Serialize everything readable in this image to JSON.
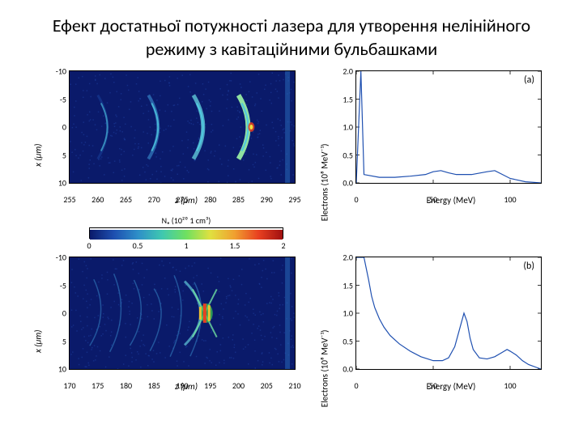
{
  "title": "Ефект достатньої потужності лазера для утворення нелінійного режиму з кавітаційними бульбашками",
  "heatmap_top": {
    "ylabel": "x (μm)",
    "xlabel": "z (μm)",
    "yticks": [
      -10,
      -5,
      0,
      5,
      10
    ],
    "xticks": [
      255,
      260,
      265,
      270,
      275,
      280,
      285,
      290,
      295
    ],
    "xlim": [
      255,
      295
    ],
    "ylim": [
      -10,
      10
    ],
    "background_color": "#0a1a6a",
    "bubble_colors": [
      "#1e4fb0",
      "#3a8fd0",
      "#5fc8d8",
      "#8fe0a0"
    ],
    "hotspot_color": "#e84020",
    "bubble_positions_z": [
      262,
      271,
      279,
      287
    ],
    "bubble_width": 7
  },
  "heatmap_bottom": {
    "ylabel": "x (μm)",
    "xlabel": "z (μm)",
    "yticks": [
      -10,
      -5,
      0,
      5,
      10
    ],
    "xticks": [
      170,
      175,
      180,
      185,
      190,
      195,
      200,
      205,
      210
    ],
    "xlim": [
      170,
      210
    ],
    "ylim": [
      -10,
      10
    ],
    "background_color": "#0a1a6a",
    "hotspot_colors": [
      "#e84020",
      "#f0c030",
      "#40d050"
    ],
    "hotspot_z": 194
  },
  "colorbar": {
    "title": "Nₑ (10²⁰ 1 cm³)",
    "ticks": [
      0,
      0.5,
      1,
      1.5,
      2
    ],
    "min": 0,
    "max": 2,
    "gradient_stops": [
      "#0a1a6a",
      "#1e4fb0",
      "#2e8fc8",
      "#3fc8b0",
      "#6fe060",
      "#e0e040",
      "#f0a030",
      "#e84020",
      "#a01010"
    ]
  },
  "spectrum_a": {
    "panel_label": "(a)",
    "ylabel": "Electrons (10⁸ MeV⁻¹)",
    "xlabel": "Energy (MeV)",
    "yticks": [
      0,
      0.5,
      1.0,
      1.5,
      2.0
    ],
    "xticks": [
      0,
      50,
      100
    ],
    "xlim": [
      0,
      120
    ],
    "ylim": [
      0,
      2.0
    ],
    "line_color": "#1e4fb0",
    "line_width": 1.2,
    "data": [
      [
        0,
        0
      ],
      [
        3,
        2.0
      ],
      [
        5,
        0.15
      ],
      [
        15,
        0.1
      ],
      [
        25,
        0.1
      ],
      [
        35,
        0.12
      ],
      [
        45,
        0.15
      ],
      [
        50,
        0.2
      ],
      [
        55,
        0.22
      ],
      [
        60,
        0.18
      ],
      [
        65,
        0.15
      ],
      [
        75,
        0.15
      ],
      [
        85,
        0.2
      ],
      [
        90,
        0.22
      ],
      [
        95,
        0.15
      ],
      [
        100,
        0.08
      ],
      [
        110,
        0.02
      ],
      [
        120,
        0
      ]
    ]
  },
  "spectrum_b": {
    "panel_label": "(b)",
    "ylabel": "Electrons (10⁸ MeV⁻¹)",
    "xlabel": "Energy (MeV)",
    "yticks": [
      0,
      0.5,
      1.0,
      1.5,
      2.0
    ],
    "xticks": [
      0,
      50,
      100
    ],
    "xlim": [
      0,
      120
    ],
    "ylim": [
      0,
      2.0
    ],
    "line_color": "#1e4fb0",
    "line_width": 1.2,
    "data": [
      [
        0,
        2.0
      ],
      [
        5,
        2.0
      ],
      [
        8,
        1.6
      ],
      [
        10,
        1.3
      ],
      [
        12,
        1.1
      ],
      [
        15,
        0.9
      ],
      [
        18,
        0.75
      ],
      [
        22,
        0.6
      ],
      [
        28,
        0.45
      ],
      [
        35,
        0.32
      ],
      [
        42,
        0.22
      ],
      [
        50,
        0.15
      ],
      [
        56,
        0.15
      ],
      [
        60,
        0.2
      ],
      [
        64,
        0.4
      ],
      [
        67,
        0.7
      ],
      [
        70,
        1.0
      ],
      [
        72,
        0.85
      ],
      [
        74,
        0.55
      ],
      [
        76,
        0.35
      ],
      [
        80,
        0.2
      ],
      [
        85,
        0.18
      ],
      [
        90,
        0.22
      ],
      [
        95,
        0.3
      ],
      [
        98,
        0.35
      ],
      [
        100,
        0.32
      ],
      [
        104,
        0.25
      ],
      [
        108,
        0.15
      ],
      [
        112,
        0.08
      ],
      [
        118,
        0.02
      ],
      [
        120,
        0
      ]
    ]
  }
}
